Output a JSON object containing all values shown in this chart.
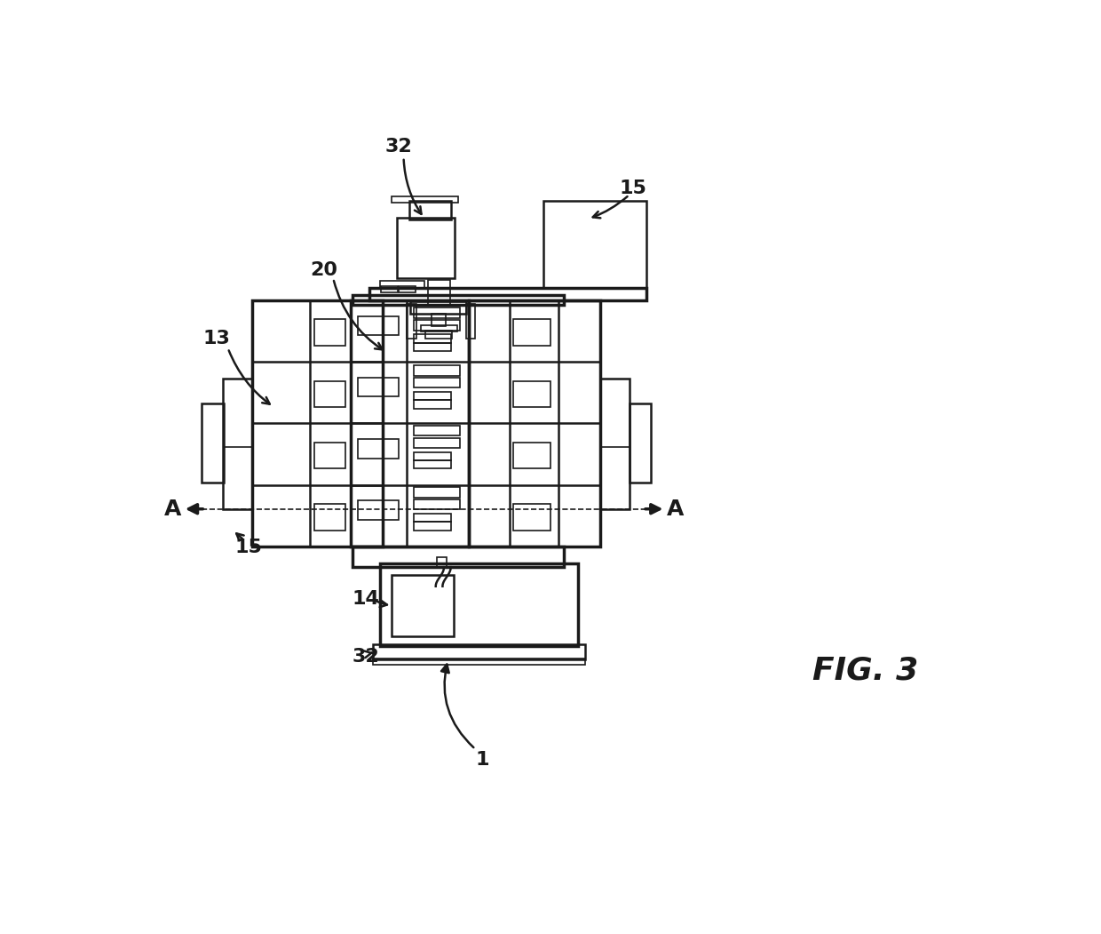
{
  "background_color": "#ffffff",
  "line_color": "#1a1a1a",
  "lw_thin": 1.2,
  "lw_med": 1.8,
  "lw_thick": 2.5,
  "fig_label": "FIG. 3",
  "label_32_top": "32",
  "label_15_top": "15",
  "label_20": "20",
  "label_13": "13",
  "label_15_left": "15",
  "label_14": "14",
  "label_32_bot": "32",
  "label_A": "A",
  "label_1": "1"
}
